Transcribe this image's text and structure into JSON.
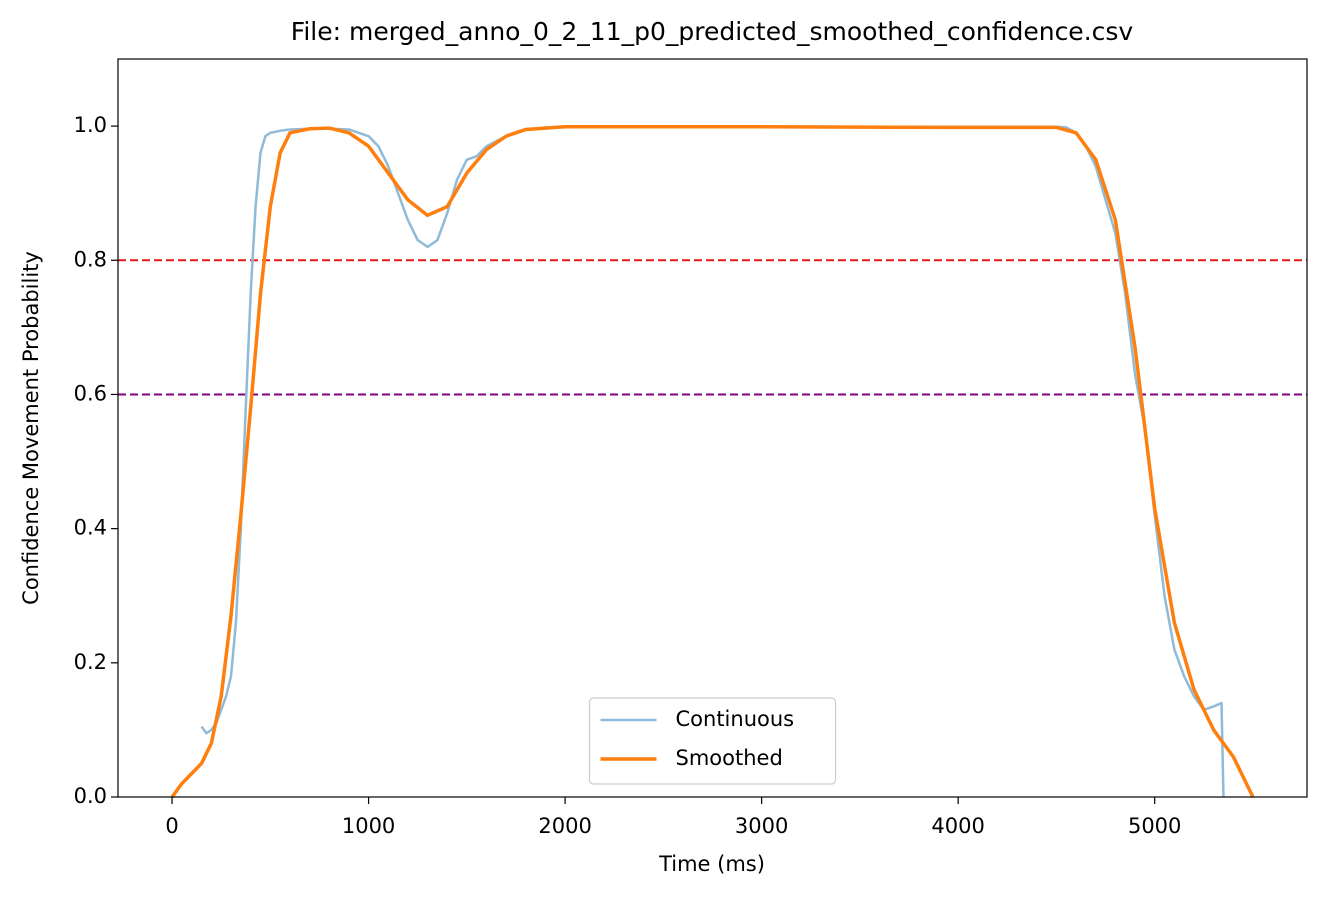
{
  "chart_data": {
    "type": "line",
    "title": "File: merged_anno_0_2_11_p0_predicted_smoothed_confidence.csv",
    "xlabel": "Time (ms)",
    "ylabel": "Confidence Movement Probability",
    "xlim": [
      -275,
      5775
    ],
    "xticks": [
      0,
      1000,
      2000,
      3000,
      4000,
      5000
    ],
    "ylim": [
      0,
      1.1
    ],
    "yticks": [
      {
        "value": 0,
        "label": "0.0"
      },
      {
        "value": 0.2,
        "label": "0.2"
      },
      {
        "value": 0.4,
        "label": "0.4"
      },
      {
        "value": 0.6,
        "label": "0.6"
      },
      {
        "value": 0.8,
        "label": "0.8"
      },
      {
        "value": 1,
        "label": "1.0"
      }
    ],
    "hlines": [
      {
        "value": 0.8,
        "color": "#e31a1c"
      },
      {
        "value": 0.6,
        "color": "#800080"
      }
    ],
    "legend": "lower center",
    "series": [
      {
        "name": "Continuous",
        "color": "#8fbbd9",
        "width": 2.5,
        "x": [
          150,
          175,
          200,
          225,
          250,
          275,
          300,
          325,
          350,
          375,
          400,
          425,
          450,
          475,
          500,
          550,
          600,
          700,
          800,
          900,
          950,
          1000,
          1050,
          1100,
          1150,
          1200,
          1250,
          1300,
          1350,
          1400,
          1450,
          1500,
          1550,
          1600,
          1700,
          1800,
          1900,
          2000,
          3000,
          4000,
          4500,
          4550,
          4600,
          4650,
          4700,
          4750,
          4800,
          4850,
          4900,
          4950,
          5000,
          5050,
          5100,
          5150,
          5200,
          5250,
          5300,
          5340,
          5350
        ],
        "values": [
          0.105,
          0.095,
          0.1,
          0.11,
          0.13,
          0.15,
          0.18,
          0.26,
          0.4,
          0.58,
          0.75,
          0.88,
          0.96,
          0.985,
          0.99,
          0.993,
          0.995,
          0.996,
          0.996,
          0.995,
          0.99,
          0.985,
          0.97,
          0.94,
          0.9,
          0.86,
          0.83,
          0.82,
          0.83,
          0.87,
          0.92,
          0.95,
          0.955,
          0.97,
          0.985,
          0.995,
          0.998,
          0.999,
          0.999,
          0.999,
          0.999,
          0.998,
          0.99,
          0.97,
          0.94,
          0.89,
          0.84,
          0.75,
          0.63,
          0.55,
          0.42,
          0.3,
          0.22,
          0.18,
          0.15,
          0.13,
          0.135,
          0.14,
          0
        ]
      },
      {
        "name": "Smoothed",
        "color": "#ff7f0e",
        "width": 3.5,
        "x": [
          0,
          50,
          100,
          150,
          200,
          250,
          300,
          350,
          400,
          450,
          500,
          550,
          600,
          700,
          800,
          900,
          1000,
          1100,
          1200,
          1300,
          1400,
          1500,
          1600,
          1700,
          1800,
          2000,
          3000,
          4000,
          4200,
          4500,
          4600,
          4700,
          4800,
          4900,
          5000,
          5100,
          5200,
          5300,
          5400,
          5450,
          5500
        ],
        "values": [
          0,
          0.02,
          0.035,
          0.05,
          0.08,
          0.15,
          0.27,
          0.42,
          0.58,
          0.75,
          0.88,
          0.96,
          0.99,
          0.996,
          0.997,
          0.99,
          0.97,
          0.93,
          0.89,
          0.867,
          0.88,
          0.93,
          0.965,
          0.985,
          0.995,
          0.999,
          0.999,
          0.998,
          0.998,
          0.998,
          0.99,
          0.95,
          0.86,
          0.67,
          0.43,
          0.26,
          0.16,
          0.1,
          0.06,
          0.03,
          0
        ]
      }
    ]
  }
}
